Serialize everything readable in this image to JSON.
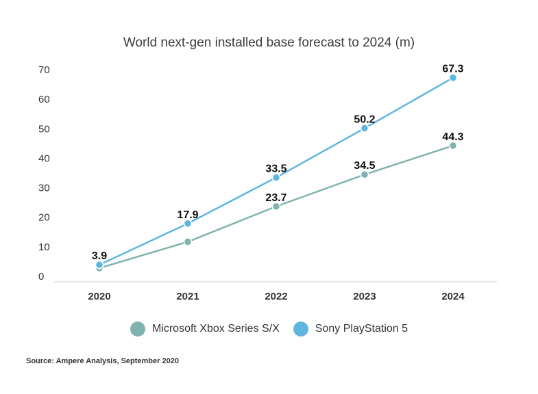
{
  "chart_data": {
    "type": "line",
    "title": "World next-gen installed base forecast to 2024 (m)",
    "categories": [
      "2020",
      "2021",
      "2022",
      "2023",
      "2024"
    ],
    "yticks": [
      "0",
      "10",
      "20",
      "30",
      "40",
      "50",
      "60",
      "70"
    ],
    "ylim": [
      0,
      70
    ],
    "xlabel": "",
    "ylabel": "",
    "series": [
      {
        "name": "Microsoft Xbox Series S/X",
        "color": "#7fb3ad",
        "values": [
          2.8,
          11.7,
          23.7,
          34.5,
          44.3
        ],
        "labels": [
          "",
          "",
          "23.7",
          "34.5",
          "44.3"
        ]
      },
      {
        "name": "Sony PlayStation 5",
        "color": "#5eb6e0",
        "values": [
          3.9,
          17.9,
          33.5,
          50.2,
          67.3
        ],
        "labels": [
          "3.9",
          "17.9",
          "33.5",
          "50.2",
          "67.3"
        ]
      }
    ],
    "legend": "bottom-center"
  },
  "source": "Source: Ampere Analysis, September 2020"
}
